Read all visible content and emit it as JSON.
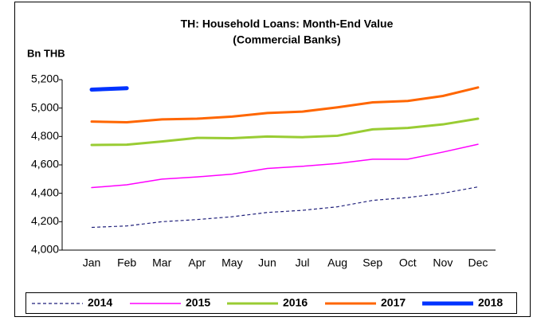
{
  "chart_data": {
    "type": "line",
    "title": "TH: Household Loans: Month-End Value",
    "subtitle": "(Commercial Banks)",
    "y_label": "Bn THB",
    "categories": [
      "Jan",
      "Feb",
      "Mar",
      "Apr",
      "May",
      "Jun",
      "Jul",
      "Aug",
      "Sep",
      "Oct",
      "Nov",
      "Dec"
    ],
    "series": [
      {
        "name": "2014",
        "color": "#1f1f7a",
        "dashed": true,
        "width": 1.2,
        "values": [
          4160,
          4170,
          4200,
          4215,
          4235,
          4265,
          4280,
          4305,
          4350,
          4370,
          4400,
          4445
        ]
      },
      {
        "name": "2015",
        "color": "#ff00ff",
        "dashed": false,
        "width": 1.5,
        "values": [
          4440,
          4460,
          4500,
          4515,
          4535,
          4575,
          4590,
          4610,
          4640,
          4640,
          4690,
          4745
        ]
      },
      {
        "name": "2016",
        "color": "#99cc33",
        "dashed": false,
        "width": 3,
        "values": [
          4740,
          4742,
          4765,
          4790,
          4788,
          4800,
          4795,
          4805,
          4850,
          4860,
          4885,
          4925
        ]
      },
      {
        "name": "2017",
        "color": "#ff6600",
        "dashed": false,
        "width": 3,
        "values": [
          4905,
          4900,
          4920,
          4925,
          4940,
          4965,
          4975,
          5005,
          5040,
          5050,
          5085,
          5145
        ]
      },
      {
        "name": "2018",
        "color": "#0033ff",
        "dashed": false,
        "width": 5,
        "values": [
          5130,
          5140,
          null,
          null,
          null,
          null,
          null,
          null,
          null,
          null,
          null,
          null
        ]
      }
    ],
    "ylim": [
      4000,
      5200
    ],
    "yticks": [
      {
        "value": 4000,
        "label": "4,000"
      },
      {
        "value": 4200,
        "label": "4,200"
      },
      {
        "value": 4400,
        "label": "4,400"
      },
      {
        "value": 4600,
        "label": "4,600"
      },
      {
        "value": 4800,
        "label": "4,800"
      },
      {
        "value": 5000,
        "label": "5,000"
      },
      {
        "value": 5200,
        "label": "5,200"
      }
    ],
    "grid": false,
    "legend": "bottom"
  }
}
